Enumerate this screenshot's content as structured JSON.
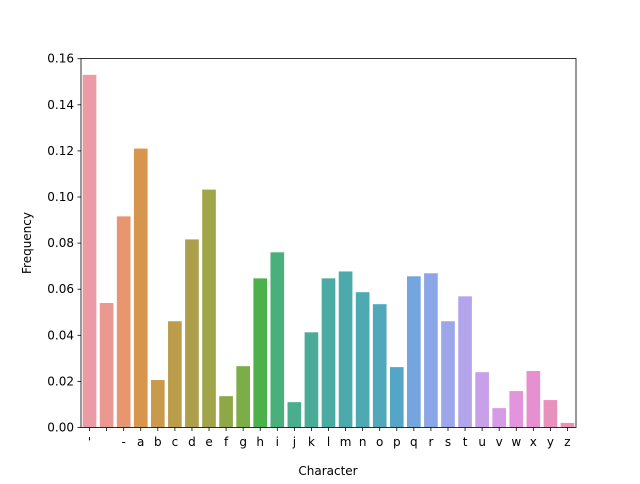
{
  "chart_data": {
    "type": "bar",
    "title": "",
    "xlabel": "Character",
    "ylabel": "Frequency",
    "ylim": [
      0,
      0.16
    ],
    "yticks": [
      "0.00",
      "0.02",
      "0.04",
      "0.06",
      "0.08",
      "0.10",
      "0.12",
      "0.14",
      "0.16"
    ],
    "categories": [
      "'",
      " ",
      "-",
      "a",
      "b",
      "c",
      "d",
      "e",
      "f",
      "g",
      "h",
      "i",
      "j",
      "k",
      "l",
      "m",
      "n",
      "o",
      "p",
      "q",
      "r",
      "s",
      "t",
      "u",
      "v",
      "w",
      "x",
      "y",
      "z"
    ],
    "values": [
      0.153,
      0.054,
      0.0916,
      0.121,
      0.0206,
      0.0461,
      0.0816,
      0.1032,
      0.0136,
      0.0266,
      0.0647,
      0.076,
      0.011,
      0.0413,
      0.0647,
      0.0677,
      0.0587,
      0.0535,
      0.0262,
      0.0656,
      0.0669,
      0.0461,
      0.0569,
      0.024,
      0.0084,
      0.0158,
      0.0245,
      0.0119,
      0.002
    ],
    "colors": [
      "#ec9aa5",
      "#ea9890",
      "#e7966f",
      "#d8954e",
      "#c99a4c",
      "#bb9d4c",
      "#ad9f4b",
      "#9fa548",
      "#8fa847",
      "#7bad48",
      "#4cb14a",
      "#49b07b",
      "#4aae8c",
      "#4aac98",
      "#4baba3",
      "#4caaac",
      "#4ea9b3",
      "#50a8bb",
      "#55a6c6",
      "#74a5df",
      "#8aa6e6",
      "#9da6ea",
      "#b3a4ec",
      "#c8a0ea",
      "#d79ae6",
      "#e294dd",
      "#e790cf",
      "#e891bd",
      "#ea93ae"
    ],
    "grid": false,
    "legend": "none"
  }
}
